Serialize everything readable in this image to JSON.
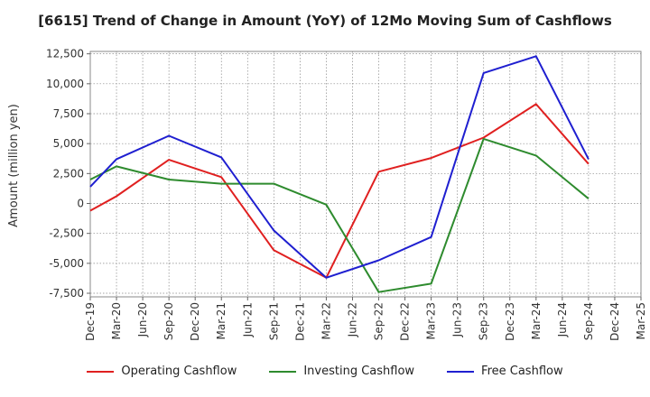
{
  "chart_data": {
    "type": "line",
    "title": "[6615]  Trend of Change in Amount (YoY) of 12Mo Moving Sum of Cashflows",
    "xlabel": "",
    "ylabel": "Amount (million yen)",
    "ylim": [
      -7800,
      12700
    ],
    "yticks": [
      12500,
      10000,
      7500,
      5000,
      2500,
      0,
      -2500,
      -5000,
      -7500
    ],
    "ytick_labels": [
      "12,500",
      "10,000",
      "7,500",
      "5,000",
      "2,500",
      "0",
      "-2,500",
      "-5,000",
      "-7,500"
    ],
    "categories": [
      "Dec-19",
      "Mar-20",
      "Jun-20",
      "Sep-20",
      "Dec-20",
      "Mar-21",
      "Jun-21",
      "Sep-21",
      "Dec-21",
      "Mar-22",
      "Jun-22",
      "Sep-22",
      "Dec-22",
      "Mar-23",
      "Jun-23",
      "Sep-23",
      "Dec-23",
      "Mar-24",
      "Jun-24",
      "Sep-24",
      "Dec-24",
      "Mar-25"
    ],
    "grid": true,
    "legend_position": "bottom",
    "series": [
      {
        "name": "Operating Cashflow",
        "color": "#e02020",
        "values": [
          -600,
          600,
          null,
          3650,
          null,
          2200,
          null,
          -3900,
          null,
          -6200,
          null,
          2650,
          null,
          3800,
          null,
          5500,
          null,
          8300,
          null,
          3300,
          null,
          null
        ]
      },
      {
        "name": "Investing Cashflow",
        "color": "#2e8b2e",
        "values": [
          2000,
          3100,
          null,
          2000,
          null,
          1650,
          null,
          1650,
          null,
          -100,
          null,
          -7400,
          null,
          -6700,
          null,
          5400,
          null,
          4000,
          null,
          400,
          null,
          null
        ]
      },
      {
        "name": "Free Cashflow",
        "color": "#1f1fd0",
        "values": [
          1400,
          3700,
          null,
          5650,
          null,
          3850,
          null,
          -2250,
          null,
          -6200,
          null,
          -4750,
          null,
          -2800,
          null,
          10900,
          null,
          12300,
          null,
          3700,
          null,
          null
        ]
      }
    ]
  }
}
